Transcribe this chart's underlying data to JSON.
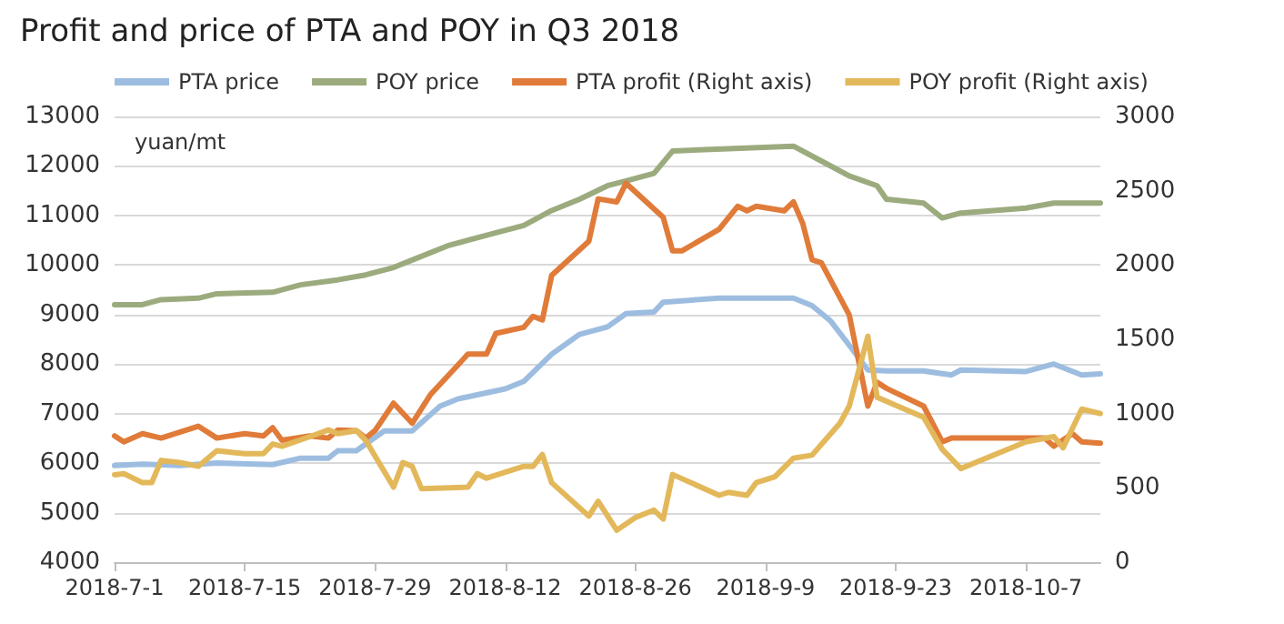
{
  "chart_data": {
    "type": "line",
    "title": "Profit and price of PTA and POY in Q3 2018",
    "ylabel": "yuan/mt",
    "xlim": [
      "2018-07-01",
      "2018-10-15"
    ],
    "xticks": [
      {
        "value": "2018-07-01",
        "label": "2018-7-1"
      },
      {
        "value": "2018-07-15",
        "label": "2018-7-15"
      },
      {
        "value": "2018-07-29",
        "label": "2018-7-29"
      },
      {
        "value": "2018-08-12",
        "label": "2018-8-12"
      },
      {
        "value": "2018-08-26",
        "label": "2018-8-26"
      },
      {
        "value": "2018-09-09",
        "label": "2018-9-9"
      },
      {
        "value": "2018-09-23",
        "label": "2018-9-23"
      },
      {
        "value": "2018-10-07",
        "label": "2018-10-7"
      }
    ],
    "ylim": [
      4000,
      13000
    ],
    "yticks": [
      4000,
      5000,
      6000,
      7000,
      8000,
      9000,
      10000,
      11000,
      12000,
      13000
    ],
    "y2lim": [
      0,
      3000
    ],
    "y2ticks": [
      0,
      500,
      1000,
      1500,
      2000,
      2500,
      3000
    ],
    "grid": "y",
    "legend": "top",
    "marker": "none",
    "line_style": "solid",
    "series": [
      {
        "name": "PTA price",
        "color": "#9dbde0",
        "x": [
          "2018-07-01",
          "2018-07-04",
          "2018-07-08",
          "2018-07-12",
          "2018-07-18",
          "2018-07-21",
          "2018-07-24",
          "2018-07-25",
          "2018-07-27",
          "2018-07-30",
          "2018-08-02",
          "2018-08-05",
          "2018-08-07",
          "2018-08-12",
          "2018-08-14",
          "2018-08-17",
          "2018-08-20",
          "2018-08-23",
          "2018-08-25",
          "2018-08-28",
          "2018-08-29",
          "2018-09-04",
          "2018-09-12",
          "2018-09-14",
          "2018-09-16",
          "2018-09-18",
          "2018-09-20",
          "2018-09-22",
          "2018-09-26",
          "2018-09-29",
          "2018-09-30",
          "2018-10-07",
          "2018-10-10",
          "2018-10-13",
          "2018-10-15"
        ],
        "values": [
          5950,
          5980,
          5950,
          6000,
          5970,
          6100,
          6100,
          6250,
          6250,
          6650,
          6650,
          7150,
          7300,
          7500,
          7650,
          8200,
          8600,
          8750,
          9020,
          9050,
          9250,
          9330,
          9330,
          9180,
          8870,
          8380,
          7880,
          7860,
          7860,
          7780,
          7880,
          7850,
          8000,
          7780,
          7800
        ]
      },
      {
        "name": "POY price",
        "color": "#9cab7e",
        "x": [
          "2018-07-01",
          "2018-07-04",
          "2018-07-06",
          "2018-07-10",
          "2018-07-12",
          "2018-07-18",
          "2018-07-21",
          "2018-07-25",
          "2018-07-28",
          "2018-07-31",
          "2018-08-02",
          "2018-08-06",
          "2018-08-10",
          "2018-08-14",
          "2018-08-17",
          "2018-08-20",
          "2018-08-23",
          "2018-08-25",
          "2018-08-28",
          "2018-08-30",
          "2018-09-05",
          "2018-09-12",
          "2018-09-15",
          "2018-09-18",
          "2018-09-21",
          "2018-09-22",
          "2018-09-26",
          "2018-09-28",
          "2018-09-30",
          "2018-10-07",
          "2018-10-10",
          "2018-10-15"
        ],
        "values": [
          9200,
          9200,
          9300,
          9330,
          9420,
          9450,
          9600,
          9700,
          9800,
          9950,
          10100,
          10400,
          10600,
          10800,
          11100,
          11330,
          11600,
          11700,
          11850,
          12300,
          12350,
          12400,
          12100,
          11800,
          11600,
          11330,
          11250,
          10950,
          11050,
          11150,
          11250,
          11250
        ]
      },
      {
        "name": "PTA profit (Right axis)",
        "color": "#e07b39",
        "axis": "y2",
        "x": [
          "2018-07-01",
          "2018-07-02",
          "2018-07-04",
          "2018-07-06",
          "2018-07-10",
          "2018-07-12",
          "2018-07-15",
          "2018-07-17",
          "2018-07-18",
          "2018-07-19",
          "2018-07-22",
          "2018-07-24",
          "2018-07-25",
          "2018-07-27",
          "2018-07-28",
          "2018-07-29",
          "2018-07-31",
          "2018-08-02",
          "2018-08-04",
          "2018-08-08",
          "2018-08-10",
          "2018-08-11",
          "2018-08-14",
          "2018-08-15",
          "2018-08-16",
          "2018-08-17",
          "2018-08-21",
          "2018-08-22",
          "2018-08-24",
          "2018-08-25",
          "2018-08-29",
          "2018-08-30",
          "2018-08-31",
          "2018-09-04",
          "2018-09-06",
          "2018-09-07",
          "2018-09-08",
          "2018-09-11",
          "2018-09-12",
          "2018-09-13",
          "2018-09-14",
          "2018-09-15",
          "2018-09-18",
          "2018-09-20",
          "2018-09-21",
          "2018-09-22",
          "2018-09-26",
          "2018-09-28",
          "2018-09-29",
          "2018-10-09",
          "2018-10-10",
          "2018-10-12",
          "2018-10-13",
          "2018-10-15"
        ],
        "values": [
          850,
          810,
          865,
          835,
          915,
          835,
          865,
          850,
          905,
          820,
          850,
          835,
          890,
          885,
          835,
          885,
          1070,
          935,
          1130,
          1400,
          1400,
          1540,
          1580,
          1655,
          1630,
          1930,
          2160,
          2445,
          2425,
          2550,
          2320,
          2095,
          2095,
          2240,
          2395,
          2365,
          2395,
          2365,
          2425,
          2280,
          2035,
          2015,
          1665,
          1050,
          1210,
          1170,
          1050,
          810,
          835,
          835,
          780,
          865,
          810,
          800
        ]
      },
      {
        "name": "POY profit (Right axis)",
        "color": "#e3b85a",
        "axis": "y2",
        "x": [
          "2018-07-01",
          "2018-07-02",
          "2018-07-04",
          "2018-07-05",
          "2018-07-06",
          "2018-07-08",
          "2018-07-10",
          "2018-07-12",
          "2018-07-15",
          "2018-07-17",
          "2018-07-18",
          "2018-07-19",
          "2018-07-22",
          "2018-07-24",
          "2018-07-25",
          "2018-07-27",
          "2018-07-28",
          "2018-07-31",
          "2018-08-01",
          "2018-08-02",
          "2018-08-03",
          "2018-08-08",
          "2018-08-09",
          "2018-08-10",
          "2018-08-14",
          "2018-08-15",
          "2018-08-16",
          "2018-08-17",
          "2018-08-21",
          "2018-08-22",
          "2018-08-24",
          "2018-08-26",
          "2018-08-28",
          "2018-08-29",
          "2018-08-30",
          "2018-09-04",
          "2018-09-05",
          "2018-09-07",
          "2018-09-08",
          "2018-09-10",
          "2018-09-12",
          "2018-09-14",
          "2018-09-17",
          "2018-09-18",
          "2018-09-20",
          "2018-09-21",
          "2018-09-26",
          "2018-09-28",
          "2018-09-30",
          "2018-10-07",
          "2018-10-10",
          "2018-10-11",
          "2018-10-13",
          "2018-10-15"
        ],
        "values": [
          588,
          595,
          535,
          535,
          685,
          670,
          645,
          750,
          730,
          730,
          795,
          780,
          845,
          890,
          865,
          885,
          820,
          505,
          670,
          645,
          495,
          505,
          595,
          565,
          645,
          645,
          725,
          535,
          310,
          410,
          215,
          300,
          350,
          290,
          590,
          450,
          470,
          450,
          535,
          575,
          700,
          720,
          935,
          1050,
          1520,
          1110,
          975,
          760,
          630,
          810,
          845,
          770,
          1030,
          1000
        ]
      }
    ]
  }
}
